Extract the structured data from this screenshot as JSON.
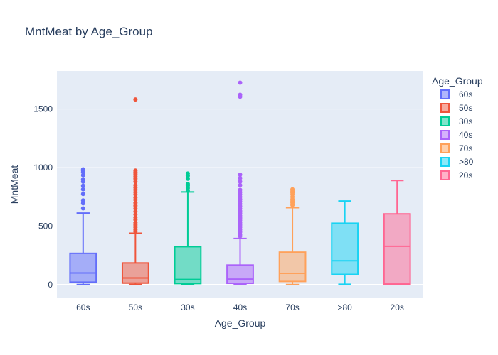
{
  "chart_data": {
    "type": "box",
    "title": "MntMeat by Age_Group",
    "xlabel": "Age_Group",
    "ylabel": "MntMeat",
    "ylim": [
      -115,
      1825
    ],
    "yticks": [
      0,
      500,
      1000,
      1500
    ],
    "grid": true,
    "legend_title": "Age_Group",
    "legend_position": "right",
    "categories": [
      "60s",
      "50s",
      "30s",
      "40s",
      "70s",
      ">80",
      "20s"
    ],
    "series": [
      {
        "name": "60s",
        "color": "#636efa",
        "min": 2,
        "q1": 22,
        "median": 100,
        "q3": 268,
        "max": 612,
        "outliers": [
          652,
          695,
          720,
          775,
          815,
          845,
          880,
          900,
          935,
          962,
          975,
          985
        ]
      },
      {
        "name": "50s",
        "color": "#ef553b",
        "min": 2,
        "q1": 14,
        "median": 58,
        "q3": 186,
        "max": 440,
        "outliers": [
          455,
          470,
          490,
          510,
          530,
          555,
          575,
          600,
          625,
          650,
          675,
          700,
          725,
          745,
          770,
          790,
          810,
          830,
          850,
          880,
          905,
          925,
          945,
          960,
          975,
          1582
        ]
      },
      {
        "name": "30s",
        "color": "#00cc96",
        "min": 2,
        "q1": 10,
        "median": 45,
        "q3": 325,
        "max": 792,
        "outliers": [
          805,
          825,
          845,
          860,
          905,
          930,
          950
        ]
      },
      {
        "name": "40s",
        "color": "#ab63fa",
        "min": 2,
        "q1": 12,
        "median": 48,
        "q3": 168,
        "max": 395,
        "outliers": [
          415,
          430,
          450,
          470,
          490,
          510,
          530,
          550,
          570,
          590,
          610,
          630,
          650,
          670,
          690,
          710,
          730,
          750,
          770,
          790,
          810,
          850,
          880,
          910,
          940,
          1605,
          1622,
          1725
        ]
      },
      {
        "name": "70s",
        "color": "#ffa15a",
        "min": 2,
        "q1": 28,
        "median": 97,
        "q3": 278,
        "max": 658,
        "outliers": [
          680,
          700,
          715,
          730,
          750,
          770,
          785,
          800,
          815
        ]
      },
      {
        "name": ">80",
        "color": "#19d3f3",
        "min": 4,
        "q1": 88,
        "median": 205,
        "q3": 525,
        "max": 715,
        "outliers": []
      },
      {
        "name": "20s",
        "color": "#ff6692",
        "min": 2,
        "q1": 6,
        "median": 328,
        "q3": 605,
        "max": 890,
        "outliers": []
      }
    ]
  }
}
